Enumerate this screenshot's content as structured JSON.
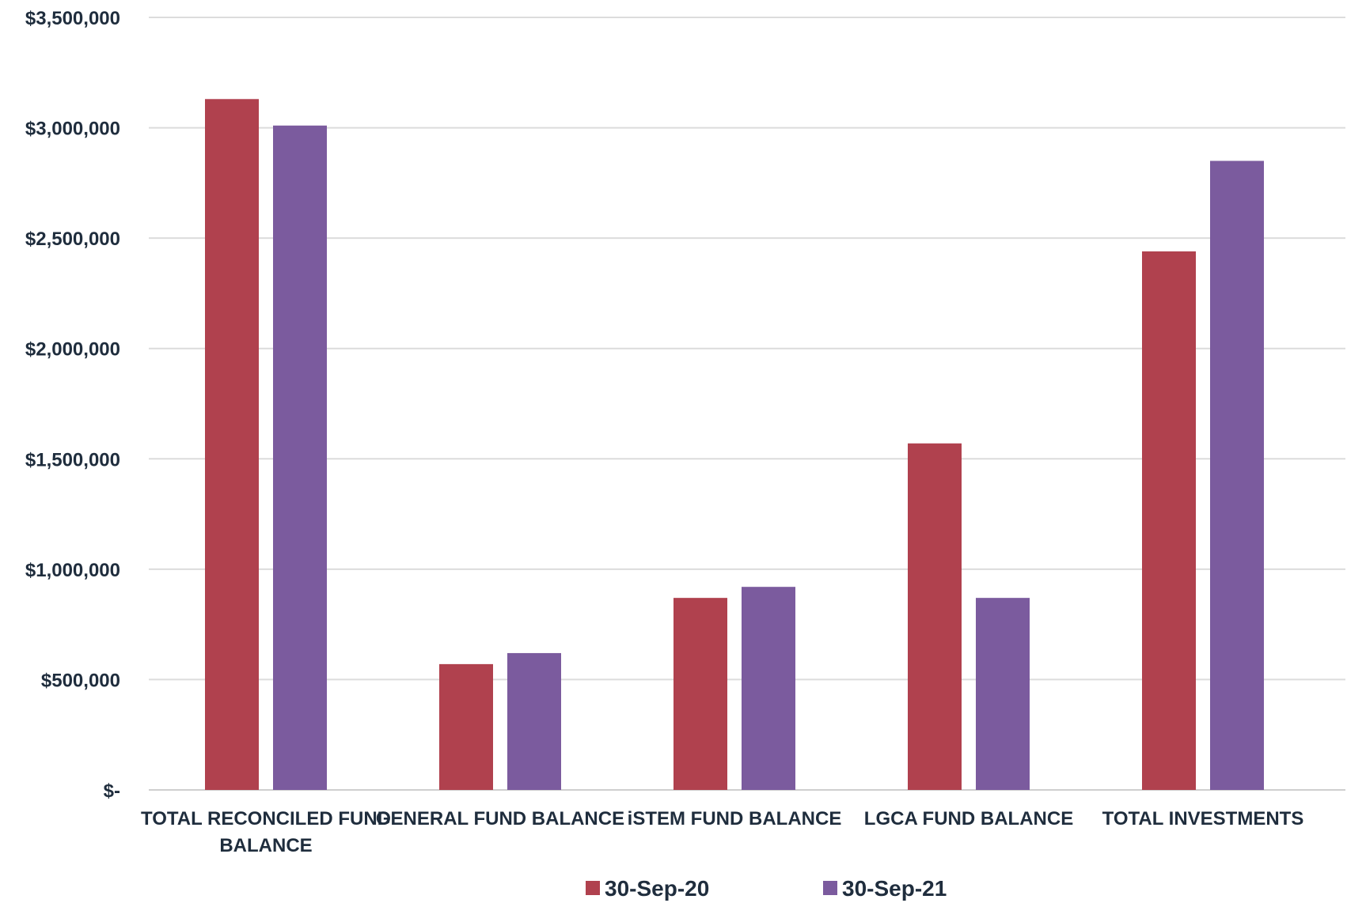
{
  "chart_data": {
    "type": "bar",
    "categories": [
      [
        "TOTAL RECONCILED FUND",
        "BALANCE"
      ],
      [
        "GENERAL FUND BALANCE"
      ],
      [
        "iSTEM FUND BALANCE"
      ],
      [
        "LGCA FUND BALANCE"
      ],
      [
        "TOTAL INVESTMENTS"
      ]
    ],
    "series": [
      {
        "name": "30-Sep-20",
        "color": "#b0414e",
        "values": [
          3130000,
          570000,
          870000,
          1570000,
          2440000
        ]
      },
      {
        "name": "30-Sep-21",
        "color": "#7b5b9e",
        "values": [
          3010000,
          620000,
          920000,
          870000,
          2850000
        ]
      }
    ],
    "ylim": [
      0,
      3500000
    ],
    "yticks": [
      {
        "value": 0,
        "label": "$-"
      },
      {
        "value": 500000,
        "label": "$500,000"
      },
      {
        "value": 1000000,
        "label": "$1,000,000"
      },
      {
        "value": 1500000,
        "label": "$1,500,000"
      },
      {
        "value": 2000000,
        "label": "$2,000,000"
      },
      {
        "value": 2500000,
        "label": "$2,500,000"
      },
      {
        "value": 3000000,
        "label": "$3,000,000"
      },
      {
        "value": 3500000,
        "label": "$3,500,000"
      }
    ],
    "grid": true,
    "legend_position": "bottom"
  }
}
